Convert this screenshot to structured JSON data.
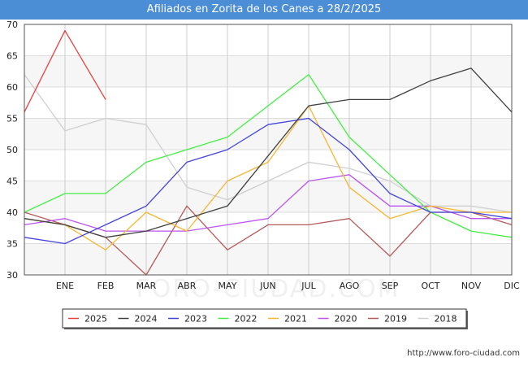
{
  "title": "Afiliados en Zorita de los Canes a 28/2/2025",
  "watermark": "FORO-CIUDAD.COM",
  "source": "http://www.foro-ciudad.com",
  "chart_data": {
    "type": "line",
    "title": "Afiliados en Zorita de los Canes a 28/2/2025",
    "xlabel": "",
    "ylabel": "",
    "categories": [
      "",
      "ENE",
      "FEB",
      "MAR",
      "ABR",
      "MAY",
      "JUN",
      "JUL",
      "AGO",
      "SEP",
      "OCT",
      "NOV",
      "DIC"
    ],
    "ylim": [
      30,
      70
    ],
    "yticks": [
      30,
      35,
      40,
      45,
      50,
      55,
      60,
      65,
      70
    ],
    "grid": true,
    "legend_position": "bottom",
    "series": [
      {
        "name": "2025",
        "color": "#e8413e",
        "values": [
          56,
          69,
          58,
          null,
          null,
          null,
          null,
          null,
          null,
          null,
          null,
          null,
          null
        ]
      },
      {
        "name": "2024",
        "color": "#404040",
        "values": [
          39,
          38,
          36,
          37,
          39,
          41,
          49,
          57,
          58,
          58,
          61,
          63,
          56
        ]
      },
      {
        "name": "2023",
        "color": "#4444dd",
        "values": [
          36,
          35,
          38,
          41,
          48,
          50,
          54,
          55,
          50,
          43,
          40,
          40,
          39
        ]
      },
      {
        "name": "2022",
        "color": "#44ee44",
        "values": [
          40,
          43,
          43,
          48,
          50,
          52,
          57,
          62,
          52,
          46,
          40,
          37,
          36
        ]
      },
      {
        "name": "2021",
        "color": "#f5b731",
        "values": [
          39,
          38,
          34,
          40,
          37,
          45,
          48,
          57,
          44,
          39,
          41,
          40,
          40
        ]
      },
      {
        "name": "2020",
        "color": "#bb55ee",
        "values": [
          38,
          39,
          37,
          37,
          37,
          38,
          39,
          45,
          46,
          41,
          41,
          39,
          39
        ]
      },
      {
        "name": "2019",
        "color": "#b55a5a",
        "values": [
          40,
          38,
          36,
          30,
          41,
          34,
          38,
          38,
          39,
          33,
          40,
          40,
          38
        ]
      },
      {
        "name": "2018",
        "color": "#cfcfcf",
        "values": [
          62,
          53,
          55,
          54,
          44,
          42,
          45,
          48,
          47,
          45,
          41,
          41,
          40
        ]
      }
    ]
  }
}
